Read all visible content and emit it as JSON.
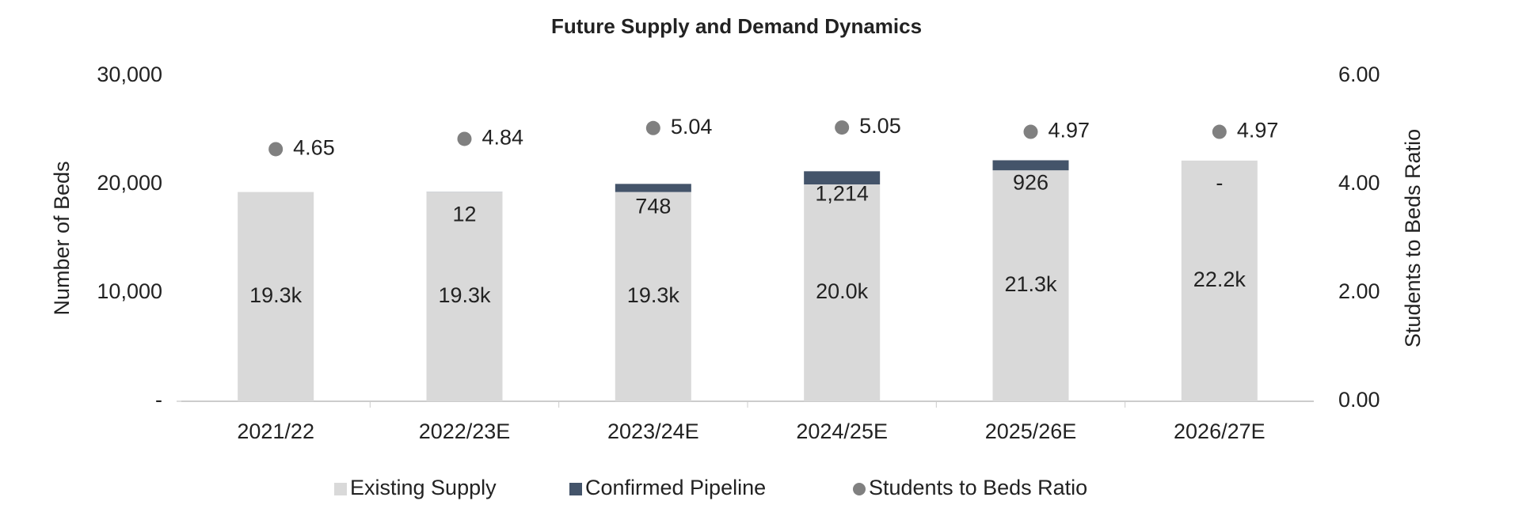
{
  "chart_data": {
    "type": "bar",
    "title": "Future Supply and Demand Dynamics",
    "y_label": "Number of Beds",
    "y2_label": "Students to Beds Ratio",
    "categories": [
      "2021/22",
      "2022/23E",
      "2023/24E",
      "2024/25E",
      "2025/26E",
      "2026/27E"
    ],
    "series": [
      {
        "name": "Existing Supply",
        "color": "#d9d9d9",
        "type": "bar",
        "values": [
          19300,
          19300,
          19300,
          20000,
          21300,
          22200
        ],
        "value_labels": [
          "19.3k",
          "19.3k",
          "19.3k",
          "20.0k",
          "21.3k",
          "22.2k"
        ]
      },
      {
        "name": "Confirmed Pipeline",
        "color": "#44546a",
        "type": "bar",
        "values": [
          null,
          12,
          748,
          1214,
          926,
          0
        ],
        "value_labels": [
          null,
          "12",
          "748",
          "1,214",
          "926",
          "-"
        ]
      },
      {
        "name": "Students to Beds Ratio",
        "color": "#808080",
        "type": "scatter",
        "axis": "y2",
        "values": [
          4.65,
          4.84,
          5.04,
          5.05,
          4.97,
          4.97
        ]
      }
    ],
    "stacked": true,
    "ylim": [
      0,
      30000
    ],
    "yticks": [
      {
        "value": 0,
        "label": "-"
      },
      {
        "value": 10000,
        "label": "10,000"
      },
      {
        "value": 20000,
        "label": "20,000"
      },
      {
        "value": 30000,
        "label": "30,000"
      }
    ],
    "y2lim": [
      0,
      6
    ],
    "y2ticks": [
      {
        "value": 0,
        "label": "0.00"
      },
      {
        "value": 2,
        "label": "2.00"
      },
      {
        "value": 4,
        "label": "4.00"
      },
      {
        "value": 6,
        "label": "6.00"
      }
    ],
    "legend": "bottom"
  }
}
